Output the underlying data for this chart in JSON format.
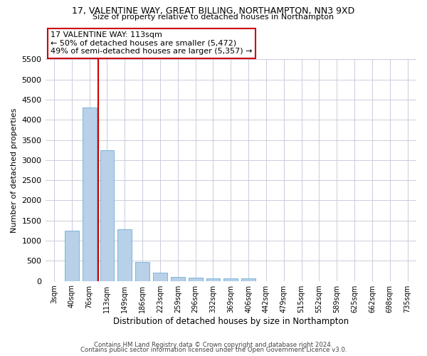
{
  "title_line1": "17, VALENTINE WAY, GREAT BILLING, NORTHAMPTON, NN3 9XD",
  "title_line2": "Size of property relative to detached houses in Northampton",
  "xlabel": "Distribution of detached houses by size in Northampton",
  "ylabel": "Number of detached properties",
  "categories": [
    "3sqm",
    "40sqm",
    "76sqm",
    "113sqm",
    "149sqm",
    "186sqm",
    "223sqm",
    "259sqm",
    "296sqm",
    "332sqm",
    "369sqm",
    "406sqm",
    "442sqm",
    "479sqm",
    "515sqm",
    "552sqm",
    "589sqm",
    "625sqm",
    "662sqm",
    "698sqm",
    "735sqm"
  ],
  "values": [
    0,
    1250,
    4300,
    3250,
    1275,
    475,
    200,
    100,
    75,
    60,
    60,
    70,
    0,
    0,
    0,
    0,
    0,
    0,
    0,
    0,
    0
  ],
  "bar_color": "#b8d0e8",
  "bar_edge_color": "#6baed6",
  "red_line_x": 2.5,
  "red_line_color": "#cc0000",
  "annotation_text": "17 VALENTINE WAY: 113sqm\n← 50% of detached houses are smaller (5,472)\n49% of semi-detached houses are larger (5,357) →",
  "annotation_box_color": "#ffffff",
  "annotation_box_edge_color": "#cc0000",
  "ylim": [
    0,
    5500
  ],
  "yticks": [
    0,
    500,
    1000,
    1500,
    2000,
    2500,
    3000,
    3500,
    4000,
    4500,
    5000,
    5500
  ],
  "grid_color": "#ccccdd",
  "background_color": "#ffffff",
  "footnote_line1": "Contains HM Land Registry data © Crown copyright and database right 2024.",
  "footnote_line2": "Contains public sector information licensed under the Open Government Licence v3.0."
}
